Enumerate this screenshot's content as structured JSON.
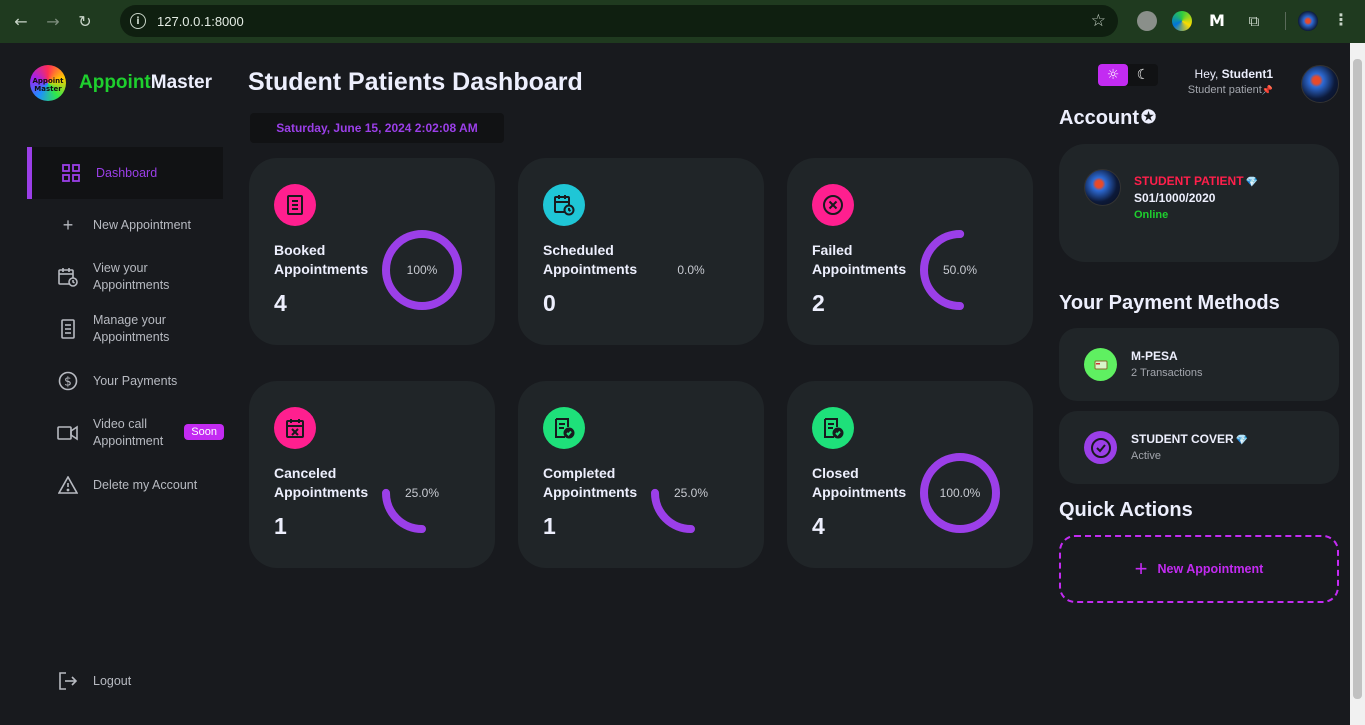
{
  "browser": {
    "url": "127.0.0.1:8000"
  },
  "brand": {
    "logo_text": "Appoint Master",
    "name_part1": "Appoint",
    "name_part2": "Master"
  },
  "sidebar": {
    "items": [
      {
        "label": "Dashboard",
        "icon": "grid-icon",
        "active": true
      },
      {
        "label": "New Appointment",
        "icon": "plus-icon"
      },
      {
        "label": "View your Appointments",
        "icon": "calendar-clock-icon"
      },
      {
        "label": "Manage your Appointments",
        "icon": "receipt-icon"
      },
      {
        "label": "Your Payments",
        "icon": "dollar-icon"
      },
      {
        "label": "Video call Appointment",
        "icon": "video-icon",
        "badge": "Soon"
      },
      {
        "label": "Delete my Account",
        "icon": "warning-icon"
      }
    ],
    "logout": "Logout"
  },
  "main": {
    "title": "Student Patients Dashboard",
    "datetime": "Saturday, June 15, 2024 2:02:08 AM",
    "cards": [
      {
        "label": "Booked Appointments",
        "value": "4",
        "percent_label": "100%",
        "percent": 100,
        "icon_color": "#ff1f8f",
        "icon": "receipt-icon"
      },
      {
        "label": "Scheduled Appointments",
        "value": "0",
        "percent_label": "0.0%",
        "percent": 0,
        "icon_color": "#1fc6d6",
        "icon": "calendar-clock-icon"
      },
      {
        "label": "Failed Appointments",
        "value": "2",
        "percent_label": "50.0%",
        "percent": 50,
        "icon_color": "#ff1f8f",
        "icon": "x-circle-icon"
      },
      {
        "label": "Canceled Appointments",
        "value": "1",
        "percent_label": "25.0%",
        "percent": 25,
        "icon_color": "#ff1f8f",
        "icon": "calendar-x-icon"
      },
      {
        "label": "Completed Appointments",
        "value": "1",
        "percent_label": "25.0%",
        "percent": 25,
        "icon_color": "#1ee07a",
        "icon": "document-check-icon"
      },
      {
        "label": "Closed Appointments",
        "value": "4",
        "percent_label": "100.0%",
        "percent": 100,
        "icon_color": "#1ee07a",
        "icon": "document-check-icon"
      }
    ]
  },
  "header": {
    "greeting_prefix": "Hey, ",
    "user_name": "Student1",
    "role": "Student patient"
  },
  "account": {
    "section_title": "Account",
    "name": "STUDENT PATIENT",
    "id": "S01/1000/2020",
    "status": "Online"
  },
  "payments": {
    "section_title": "Your Payment Methods",
    "methods": [
      {
        "name": "M-PESA",
        "sub": "2 Transactions"
      },
      {
        "name": "STUDENT COVER",
        "sub": "Active"
      }
    ]
  },
  "quick_actions": {
    "section_title": "Quick Actions",
    "new_appointment": "New Appointment"
  },
  "colors": {
    "accent": "#c32bf2",
    "purple": "#9b3fe8",
    "card_bg": "#202528",
    "page_bg": "#181a1e"
  }
}
